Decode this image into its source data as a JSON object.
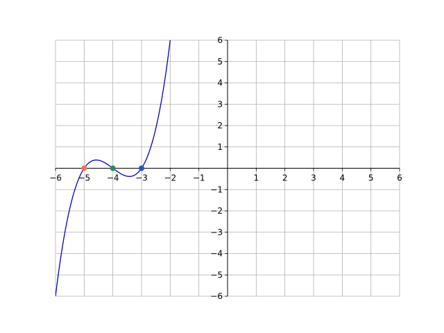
{
  "chart_data": {
    "type": "line",
    "title": "",
    "xlabel": "",
    "ylabel": "",
    "xlim": [
      -6,
      6
    ],
    "ylim": [
      -6,
      6
    ],
    "grid": true,
    "x_ticks": [
      {
        "value": -6,
        "label": "−6"
      },
      {
        "value": -5,
        "label": "−5"
      },
      {
        "value": -4,
        "label": "−4"
      },
      {
        "value": -3,
        "label": "−3"
      },
      {
        "value": -2,
        "label": "−2"
      },
      {
        "value": -1,
        "label": "−1"
      },
      {
        "value": 1,
        "label": "1"
      },
      {
        "value": 2,
        "label": "2"
      },
      {
        "value": 3,
        "label": "3"
      },
      {
        "value": 4,
        "label": "4"
      },
      {
        "value": 5,
        "label": "5"
      },
      {
        "value": 6,
        "label": "6"
      }
    ],
    "y_ticks": [
      {
        "value": -6,
        "label": "−6"
      },
      {
        "value": -5,
        "label": "−5"
      },
      {
        "value": -4,
        "label": "−4"
      },
      {
        "value": -3,
        "label": "−3"
      },
      {
        "value": -2,
        "label": "−2"
      },
      {
        "value": -1,
        "label": "−1"
      },
      {
        "value": 1,
        "label": "1"
      },
      {
        "value": 2,
        "label": "2"
      },
      {
        "value": 3,
        "label": "3"
      },
      {
        "value": 4,
        "label": "4"
      },
      {
        "value": 5,
        "label": "5"
      },
      {
        "value": 6,
        "label": "6"
      }
    ],
    "curve": {
      "function": "(x+5)(x+4)(x+3)",
      "color": "#0000cc",
      "x_range": [
        -6,
        -1.96
      ]
    },
    "points": [
      {
        "x": -5,
        "y": 0,
        "color": "#e8775a"
      },
      {
        "x": -4,
        "y": 0,
        "color": "#2e8b57"
      },
      {
        "x": -3,
        "y": 0,
        "color": "#1f5bbf"
      }
    ]
  }
}
